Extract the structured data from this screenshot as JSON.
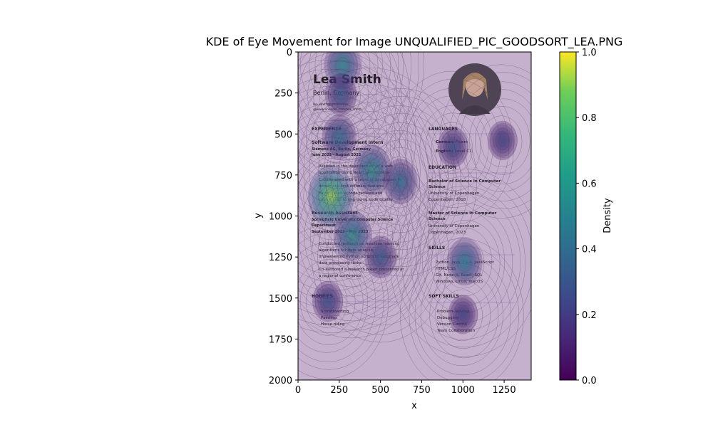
{
  "chart_data": {
    "type": "heatmap",
    "title": "KDE of Eye Movement for Image UNQUALIFIED_PIC_GOODSORT_LEA.PNG",
    "xlabel": "x",
    "ylabel": "y",
    "xlim": [
      0,
      1414
    ],
    "ylim": [
      2000,
      0
    ],
    "xticks": [
      0,
      250,
      500,
      750,
      1000,
      1250
    ],
    "yticks": [
      0,
      250,
      500,
      750,
      1000,
      1250,
      1500,
      1750,
      2000
    ],
    "colorbar": {
      "label": "Density",
      "ticks": [
        0.0,
        0.2,
        0.4,
        0.6,
        0.8,
        1.0
      ],
      "tick_labels": [
        "0.0",
        "0.2",
        "0.4",
        "0.6",
        "0.8",
        "1.0"
      ],
      "colormap": "viridis"
    },
    "hotspots": [
      {
        "x": 270,
        "y": 80,
        "density": 0.55
      },
      {
        "x": 260,
        "y": 260,
        "density": 0.35
      },
      {
        "x": 250,
        "y": 520,
        "density": 0.45
      },
      {
        "x": 200,
        "y": 880,
        "density": 0.95
      },
      {
        "x": 450,
        "y": 720,
        "density": 0.6
      },
      {
        "x": 620,
        "y": 790,
        "density": 0.45
      },
      {
        "x": 330,
        "y": 1120,
        "density": 0.6
      },
      {
        "x": 500,
        "y": 1250,
        "density": 0.35
      },
      {
        "x": 180,
        "y": 1520,
        "density": 0.3
      },
      {
        "x": 1010,
        "y": 1280,
        "density": 0.5
      },
      {
        "x": 940,
        "y": 580,
        "density": 0.3
      },
      {
        "x": 1240,
        "y": 540,
        "density": 0.25
      },
      {
        "x": 1000,
        "y": 1600,
        "density": 0.25
      }
    ],
    "colors": {
      "background_tint": "#c5b0cd",
      "contour": "#5a3f6a"
    }
  },
  "resume": {
    "name": "Lea Smith",
    "location": "Berlin, Germany",
    "email": "lea.smith@gmail.com",
    "linkedin": "@www.linkedin.com/lea_smith",
    "experience_heading": "EXPERIENCE",
    "job1_title": "Software Development Intern",
    "job1_company": "Siemens AG, Berlin, Germany",
    "job1_dates": "June 2023 - August 2023",
    "job1_bullets": [
      "Assisted in the development of a web",
      "application using React and Node.js",
      "Collaborated with a team of developers to",
      "debug and test software features",
      "Participated in code reviews and",
      "contributed to improving code quality"
    ],
    "job2_title": "Research Assistant",
    "job2_company": "Springfield University Computer Science",
    "job2_company2": "Department",
    "job2_dates": "September 2022 - May 2023",
    "job2_bullets": [
      "Conducted research on machine learning",
      "algorithms for data analysis",
      "Implemented Python scripts to automate",
      "data processing tasks",
      "Co-authored a research paper presented at",
      "a regional conference"
    ],
    "hobbies_heading": "HOBBIES",
    "hobbies": [
      "Snowboarding",
      "Painting",
      "Horse riding"
    ],
    "languages_heading": "LANGUAGES",
    "lang1_label": "German:",
    "lang1_value": "Fluent",
    "lang2_label": "English:",
    "lang2_value": "Level C1",
    "education_heading": "EDUCATION",
    "edu1_degree": "Bachelor of Science in Computer",
    "edu1_degree2": "Science",
    "edu1_school": "University of Copenhagen",
    "edu1_place": "Copenhagen, 2018",
    "edu2_degree": "Master of Science in Computer",
    "edu2_degree2": "Science",
    "edu2_school": "University of Copenhagen",
    "edu2_place": "Copenhagen, 2023",
    "skills_heading": "SKILLS",
    "skills": [
      "Python, Java, C++, JavaScript",
      "HTML/CSS",
      "Git, Node.js, React, SQL",
      "Windows, Linux, macOS"
    ],
    "soft_skills_heading": "SOFT SKILLS",
    "soft_skills": [
      "Problem-Solving",
      "Debugging",
      "Version Control",
      "Team Collaboration"
    ]
  }
}
